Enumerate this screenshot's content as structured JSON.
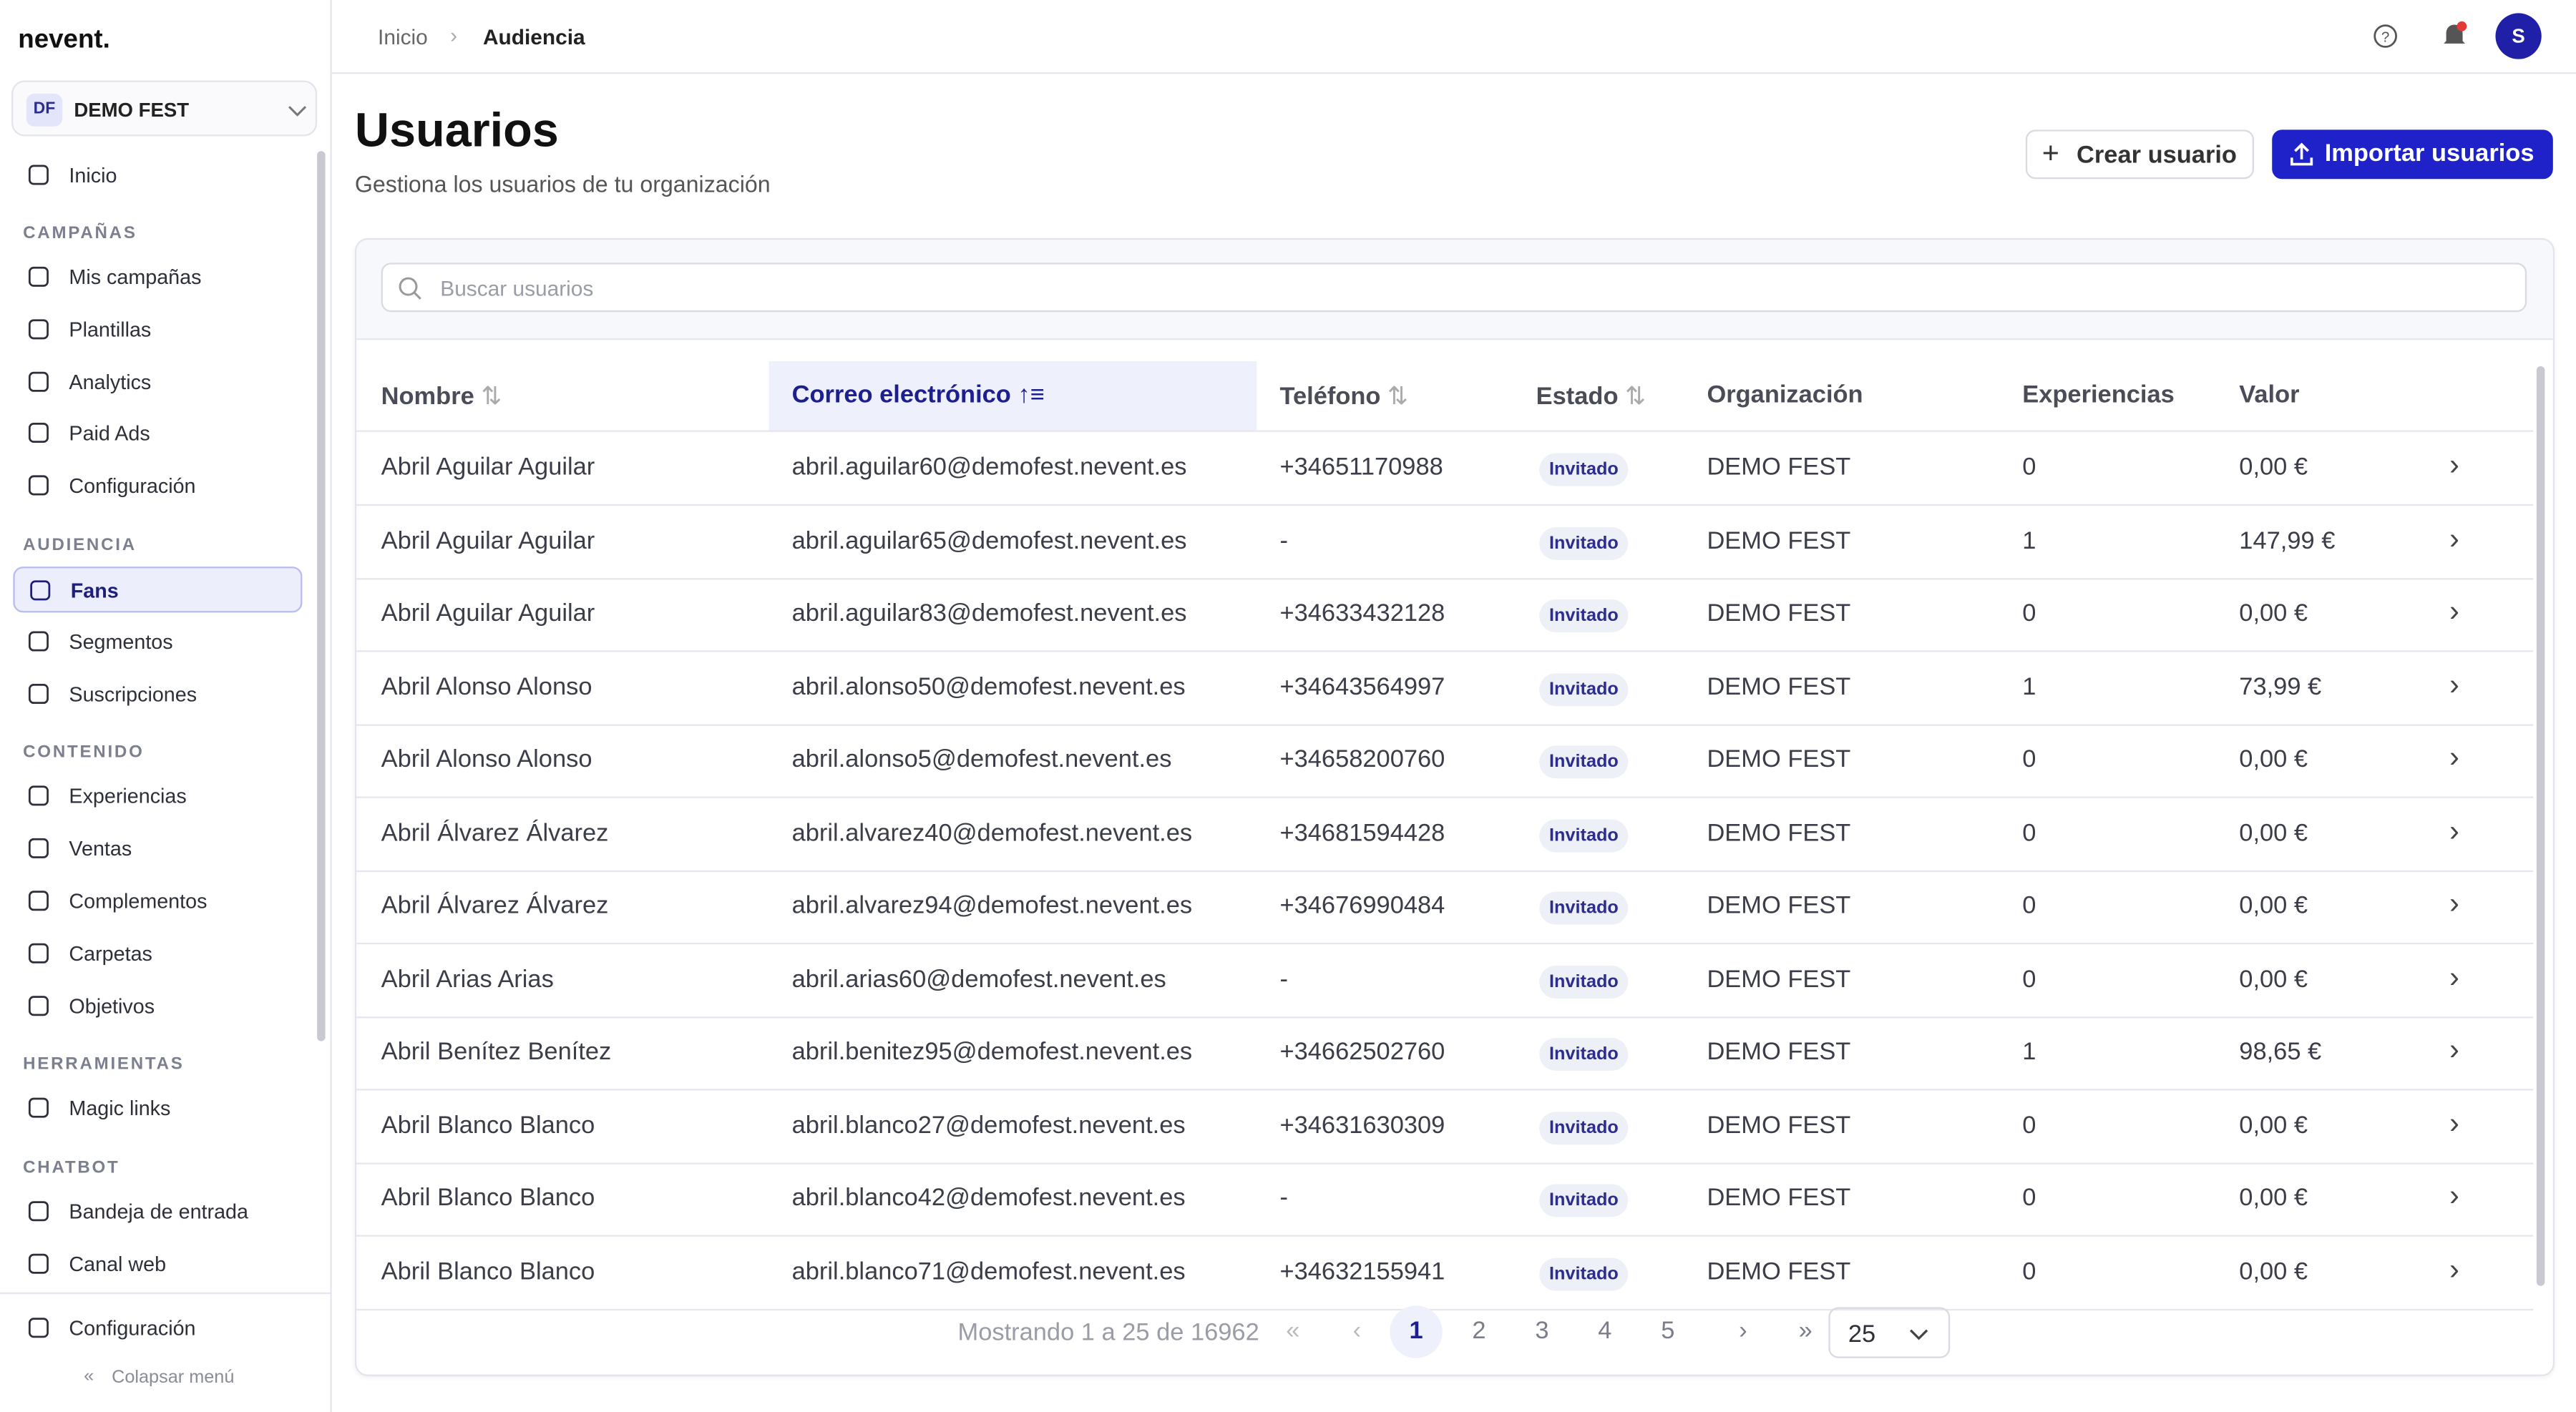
{
  "sidebar": {
    "brand": "nevent.",
    "org_initials": "DF",
    "org_name": "DEMO FEST",
    "top_item": "Inicio",
    "sections": [
      {
        "title": "CAMPAÑAS",
        "items": [
          "Mis campañas",
          "Plantillas",
          "Analytics",
          "Paid Ads",
          "Configuración"
        ]
      },
      {
        "title": "AUDIENCIA",
        "items": [
          "Fans",
          "Segmentos",
          "Suscripciones"
        ]
      },
      {
        "title": "CONTENIDO",
        "items": [
          "Experiencias",
          "Ventas",
          "Complementos",
          "Carpetas",
          "Objetivos"
        ]
      },
      {
        "title": "HERRAMIENTAS",
        "items": [
          "Magic links"
        ]
      },
      {
        "title": "CHATBOT",
        "items": [
          "Bandeja de entrada",
          "Canal web"
        ]
      }
    ],
    "bottom_item": "Configuración",
    "collapse": "Colapsar menú"
  },
  "header": {
    "breadcrumb": [
      "Inicio",
      "Audiencia"
    ],
    "avatar": "S"
  },
  "page": {
    "title": "Usuarios",
    "subtitle": "Gestiona los usuarios de tu organización",
    "create_button": "Crear usuario",
    "import_button": "Importar usuarios",
    "search_placeholder": "Buscar usuarios"
  },
  "table": {
    "columns": [
      "Nombre",
      "Correo electrónico",
      "Teléfono",
      "Estado",
      "Organización",
      "Experiencias",
      "Valor"
    ],
    "rows": [
      [
        "Abril Aguilar Aguilar",
        "abril.aguilar60@demofest.nevent.es",
        "+34651170988",
        "Invitado",
        "DEMO FEST",
        "0",
        "0,00 €"
      ],
      [
        "Abril Aguilar Aguilar",
        "abril.aguilar65@demofest.nevent.es",
        "-",
        "Invitado",
        "DEMO FEST",
        "1",
        "147,99 €"
      ],
      [
        "Abril Aguilar Aguilar",
        "abril.aguilar83@demofest.nevent.es",
        "+34633432128",
        "Invitado",
        "DEMO FEST",
        "0",
        "0,00 €"
      ],
      [
        "Abril Alonso Alonso",
        "abril.alonso50@demofest.nevent.es",
        "+34643564997",
        "Invitado",
        "DEMO FEST",
        "1",
        "73,99 €"
      ],
      [
        "Abril Alonso Alonso",
        "abril.alonso5@demofest.nevent.es",
        "+34658200760",
        "Invitado",
        "DEMO FEST",
        "0",
        "0,00 €"
      ],
      [
        "Abril Álvarez Álvarez",
        "abril.alvarez40@demofest.nevent.es",
        "+34681594428",
        "Invitado",
        "DEMO FEST",
        "0",
        "0,00 €"
      ],
      [
        "Abril Álvarez Álvarez",
        "abril.alvarez94@demofest.nevent.es",
        "+34676990484",
        "Invitado",
        "DEMO FEST",
        "0",
        "0,00 €"
      ],
      [
        "Abril Arias Arias",
        "abril.arias60@demofest.nevent.es",
        "-",
        "Invitado",
        "DEMO FEST",
        "0",
        "0,00 €"
      ],
      [
        "Abril Benítez Benítez",
        "abril.benitez95@demofest.nevent.es",
        "+34662502760",
        "Invitado",
        "DEMO FEST",
        "1",
        "98,65 €"
      ],
      [
        "Abril Blanco Blanco",
        "abril.blanco27@demofest.nevent.es",
        "+34631630309",
        "Invitado",
        "DEMO FEST",
        "0",
        "0,00 €"
      ],
      [
        "Abril Blanco Blanco",
        "abril.blanco42@demofest.nevent.es",
        "-",
        "Invitado",
        "DEMO FEST",
        "0",
        "0,00 €"
      ],
      [
        "Abril Blanco Blanco",
        "abril.blanco71@demofest.nevent.es",
        "+34632155941",
        "Invitado",
        "DEMO FEST",
        "0",
        "0,00 €"
      ]
    ]
  },
  "pagination": {
    "summary": "Mostrando 1 a 25 de 16962",
    "pages": [
      "1",
      "2",
      "3",
      "4",
      "5"
    ],
    "page_size": "25"
  }
}
